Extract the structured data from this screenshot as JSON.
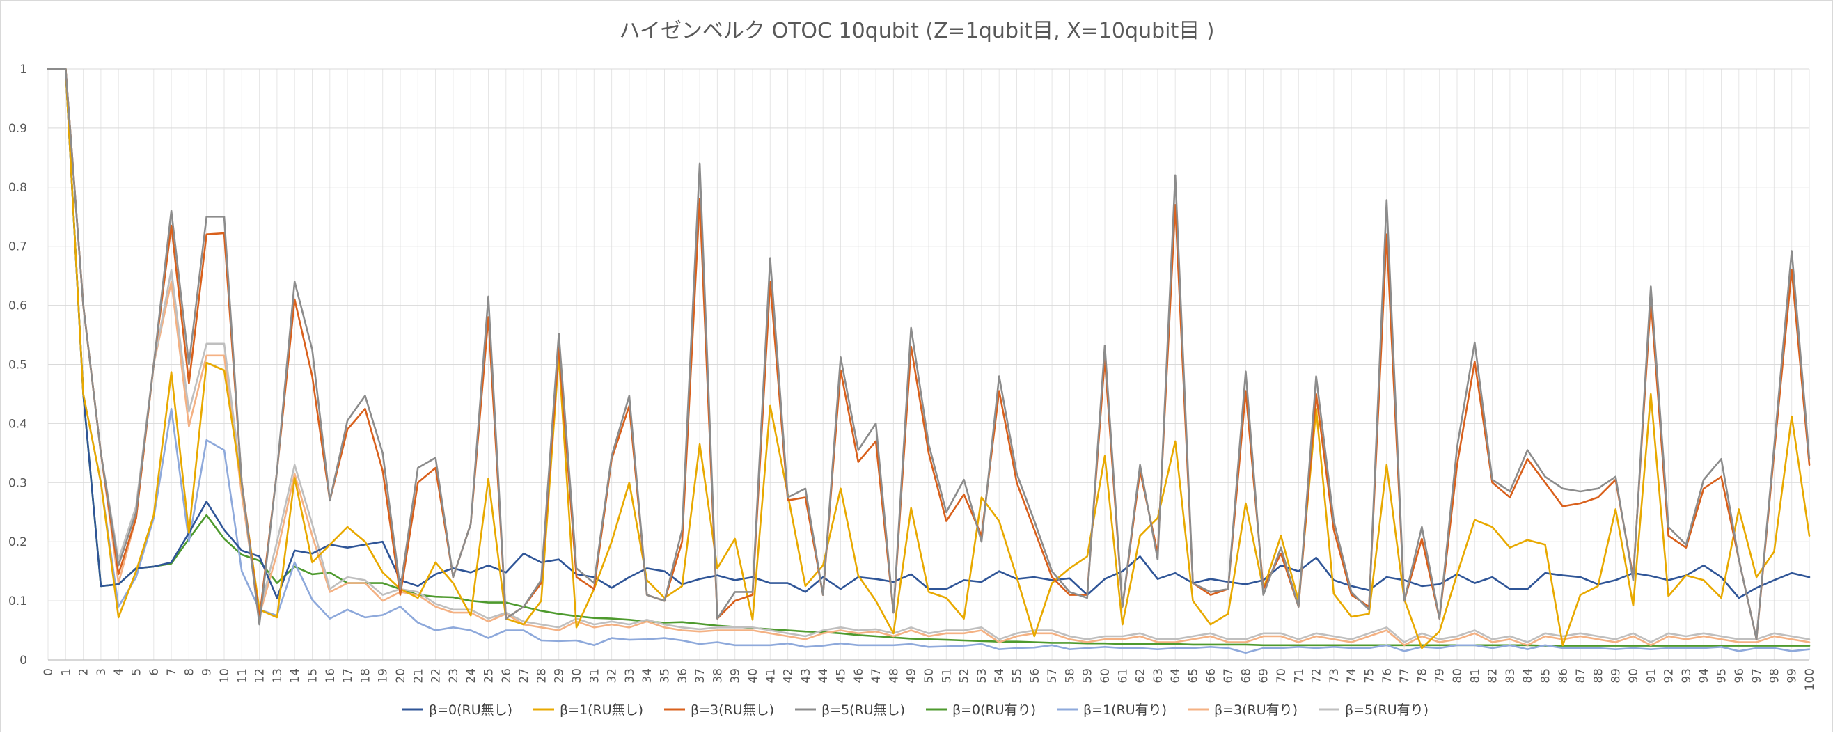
{
  "chart_data": {
    "type": "line",
    "title": "ハイゼンベルク OTOC 10qubit (Z=1qubit目, X=10qubit目 )",
    "xlabel": "",
    "ylabel": "",
    "ylim": [
      0,
      1
    ],
    "yticks": [
      "0",
      "0.1",
      "0.2",
      "0.3",
      "0.4",
      "0.5",
      "0.6",
      "0.7",
      "0.8",
      "0.9",
      "1"
    ],
    "x_range": [
      0,
      100
    ],
    "grid": true,
    "legend_position": "bottom",
    "series": [
      {
        "name": "β=0(RU無し)",
        "color": "#2f5597",
        "values": [
          1,
          1,
          0.45,
          0.125,
          0.128,
          0.155,
          0.158,
          0.165,
          0.215,
          0.268,
          0.22,
          0.185,
          0.175,
          0.105,
          0.185,
          0.18,
          0.195,
          0.19,
          0.195,
          0.2,
          0.135,
          0.125,
          0.145,
          0.155,
          0.148,
          0.16,
          0.148,
          0.18,
          0.165,
          0.17,
          0.145,
          0.14,
          0.122,
          0.14,
          0.155,
          0.15,
          0.128,
          0.137,
          0.143,
          0.135,
          0.14,
          0.13,
          0.13,
          0.115,
          0.14,
          0.12,
          0.14,
          0.137,
          0.132,
          0.145,
          0.12,
          0.12,
          0.135,
          0.132,
          0.15,
          0.137,
          0.14,
          0.135,
          0.138,
          0.11,
          0.137,
          0.15,
          0.175,
          0.137,
          0.147,
          0.13,
          0.137,
          0.132,
          0.128,
          0.135,
          0.16,
          0.15,
          0.173,
          0.135,
          0.125,
          0.118,
          0.14,
          0.135,
          0.125,
          0.128,
          0.145,
          0.13,
          0.14,
          0.12,
          0.12,
          0.147,
          0.143,
          0.14,
          0.128,
          0.135,
          0.147,
          0.142,
          0.135,
          0.143,
          0.16,
          0.14,
          0.105,
          0.122,
          0.135,
          0.147,
          0.14
        ]
      },
      {
        "name": "β=1(RU無し)",
        "color": "#e8a900",
        "values": [
          1,
          1,
          0.45,
          0.3,
          0.072,
          0.15,
          0.245,
          0.487,
          0.215,
          0.503,
          0.49,
          0.295,
          0.085,
          0.072,
          0.308,
          0.165,
          0.195,
          0.225,
          0.2,
          0.148,
          0.12,
          0.105,
          0.165,
          0.13,
          0.075,
          0.307,
          0.07,
          0.06,
          0.1,
          0.515,
          0.055,
          0.12,
          0.2,
          0.3,
          0.135,
          0.105,
          0.125,
          0.365,
          0.155,
          0.205,
          0.068,
          0.43,
          0.28,
          0.125,
          0.16,
          0.29,
          0.143,
          0.1,
          0.045,
          0.257,
          0.115,
          0.105,
          0.07,
          0.275,
          0.235,
          0.14,
          0.04,
          0.13,
          0.155,
          0.175,
          0.345,
          0.06,
          0.21,
          0.24,
          0.37,
          0.1,
          0.06,
          0.078,
          0.265,
          0.12,
          0.21,
          0.1,
          0.425,
          0.112,
          0.073,
          0.078,
          0.33,
          0.103,
          0.02,
          0.048,
          0.145,
          0.237,
          0.225,
          0.19,
          0.203,
          0.195,
          0.025,
          0.11,
          0.125,
          0.255,
          0.092,
          0.45,
          0.108,
          0.143,
          0.135,
          0.105,
          0.255,
          0.14,
          0.183,
          0.412,
          0.21
        ]
      },
      {
        "name": "β=3(RU無し)",
        "color": "#d9601c",
        "values": [
          1,
          1,
          0.6,
          0.35,
          0.145,
          0.24,
          0.5,
          0.735,
          0.468,
          0.72,
          0.722,
          0.3,
          0.07,
          0.32,
          0.61,
          0.48,
          0.27,
          0.39,
          0.425,
          0.32,
          0.11,
          0.3,
          0.325,
          0.14,
          0.23,
          0.58,
          0.07,
          0.09,
          0.13,
          0.53,
          0.14,
          0.12,
          0.34,
          0.43,
          0.11,
          0.1,
          0.2,
          0.78,
          0.07,
          0.1,
          0.11,
          0.64,
          0.27,
          0.275,
          0.11,
          0.49,
          0.335,
          0.37,
          0.08,
          0.53,
          0.35,
          0.235,
          0.28,
          0.21,
          0.455,
          0.3,
          0.22,
          0.14,
          0.11,
          0.11,
          0.51,
          0.09,
          0.32,
          0.18,
          0.77,
          0.13,
          0.11,
          0.12,
          0.455,
          0.12,
          0.18,
          0.09,
          0.45,
          0.22,
          0.11,
          0.09,
          0.72,
          0.1,
          0.205,
          0.07,
          0.33,
          0.505,
          0.3,
          0.275,
          0.34,
          0.3,
          0.26,
          0.265,
          0.275,
          0.305,
          0.14,
          0.61,
          0.21,
          0.19,
          0.29,
          0.31,
          0.17,
          0.035,
          0.35,
          0.66,
          0.33
        ]
      },
      {
        "name": "β=5(RU無し)",
        "color": "#8c8c8c",
        "values": [
          1,
          1,
          0.6,
          0.35,
          0.16,
          0.25,
          0.5,
          0.76,
          0.5,
          0.75,
          0.75,
          0.3,
          0.06,
          0.32,
          0.64,
          0.525,
          0.27,
          0.405,
          0.447,
          0.35,
          0.12,
          0.325,
          0.342,
          0.14,
          0.23,
          0.615,
          0.07,
          0.09,
          0.135,
          0.552,
          0.155,
          0.13,
          0.345,
          0.447,
          0.11,
          0.1,
          0.22,
          0.84,
          0.07,
          0.115,
          0.115,
          0.68,
          0.275,
          0.29,
          0.11,
          0.512,
          0.355,
          0.4,
          0.08,
          0.562,
          0.365,
          0.25,
          0.305,
          0.2,
          0.48,
          0.315,
          0.235,
          0.15,
          0.115,
          0.105,
          0.532,
          0.09,
          0.33,
          0.17,
          0.82,
          0.13,
          0.115,
          0.12,
          0.488,
          0.11,
          0.19,
          0.09,
          0.48,
          0.235,
          0.115,
          0.085,
          0.778,
          0.1,
          0.225,
          0.07,
          0.36,
          0.537,
          0.305,
          0.285,
          0.355,
          0.31,
          0.29,
          0.285,
          0.29,
          0.31,
          0.135,
          0.632,
          0.225,
          0.195,
          0.305,
          0.34,
          0.17,
          0.035,
          0.36,
          0.692,
          0.34
        ]
      },
      {
        "name": "β=0(RU有り)",
        "color": "#4e9a2e",
        "values": [
          1,
          1,
          0.45,
          0.125,
          0.128,
          0.155,
          0.158,
          0.163,
          0.205,
          0.245,
          0.205,
          0.178,
          0.168,
          0.13,
          0.158,
          0.145,
          0.148,
          0.13,
          0.13,
          0.13,
          0.12,
          0.11,
          0.107,
          0.106,
          0.1,
          0.097,
          0.097,
          0.09,
          0.083,
          0.078,
          0.074,
          0.071,
          0.07,
          0.068,
          0.065,
          0.063,
          0.064,
          0.061,
          0.058,
          0.056,
          0.054,
          0.052,
          0.05,
          0.048,
          0.047,
          0.045,
          0.042,
          0.04,
          0.038,
          0.036,
          0.035,
          0.034,
          0.033,
          0.032,
          0.031,
          0.031,
          0.03,
          0.029,
          0.029,
          0.028,
          0.028,
          0.027,
          0.027,
          0.027,
          0.027,
          0.026,
          0.026,
          0.026,
          0.026,
          0.025,
          0.025,
          0.025,
          0.025,
          0.025,
          0.025,
          0.025,
          0.025,
          0.025,
          0.025,
          0.025,
          0.025,
          0.025,
          0.025,
          0.025,
          0.025,
          0.024,
          0.024,
          0.024,
          0.024,
          0.024,
          0.024,
          0.024,
          0.024,
          0.024,
          0.024,
          0.024,
          0.024,
          0.024,
          0.024,
          0.024,
          0.024
        ]
      },
      {
        "name": "β=1(RU有り)",
        "color": "#8ea9db",
        "values": [
          1,
          1,
          0.45,
          0.3,
          0.09,
          0.14,
          0.24,
          0.425,
          0.2,
          0.372,
          0.355,
          0.15,
          0.085,
          0.075,
          0.165,
          0.102,
          0.07,
          0.085,
          0.072,
          0.076,
          0.09,
          0.063,
          0.05,
          0.055,
          0.05,
          0.037,
          0.05,
          0.05,
          0.033,
          0.032,
          0.033,
          0.025,
          0.037,
          0.034,
          0.035,
          0.037,
          0.033,
          0.027,
          0.03,
          0.025,
          0.025,
          0.025,
          0.028,
          0.022,
          0.024,
          0.028,
          0.025,
          0.025,
          0.025,
          0.027,
          0.022,
          0.023,
          0.024,
          0.027,
          0.018,
          0.02,
          0.021,
          0.025,
          0.018,
          0.02,
          0.022,
          0.02,
          0.02,
          0.018,
          0.02,
          0.02,
          0.022,
          0.02,
          0.012,
          0.02,
          0.02,
          0.022,
          0.02,
          0.022,
          0.02,
          0.02,
          0.025,
          0.015,
          0.022,
          0.02,
          0.025,
          0.025,
          0.02,
          0.025,
          0.018,
          0.025,
          0.02,
          0.02,
          0.02,
          0.018,
          0.02,
          0.018,
          0.02,
          0.02,
          0.02,
          0.022,
          0.015,
          0.02,
          0.02,
          0.015,
          0.018
        ]
      },
      {
        "name": "β=3(RU有り)",
        "color": "#f4b183",
        "values": [
          1,
          1,
          0.6,
          0.35,
          0.13,
          0.24,
          0.5,
          0.64,
          0.395,
          0.515,
          0.515,
          0.28,
          0.075,
          0.18,
          0.315,
          0.21,
          0.115,
          0.13,
          0.13,
          0.1,
          0.115,
          0.11,
          0.09,
          0.08,
          0.08,
          0.065,
          0.078,
          0.06,
          0.055,
          0.05,
          0.065,
          0.055,
          0.06,
          0.055,
          0.065,
          0.055,
          0.05,
          0.048,
          0.05,
          0.05,
          0.05,
          0.045,
          0.04,
          0.035,
          0.045,
          0.05,
          0.045,
          0.048,
          0.04,
          0.05,
          0.04,
          0.045,
          0.045,
          0.05,
          0.03,
          0.04,
          0.045,
          0.045,
          0.035,
          0.03,
          0.035,
          0.035,
          0.04,
          0.03,
          0.03,
          0.035,
          0.04,
          0.03,
          0.03,
          0.04,
          0.04,
          0.03,
          0.04,
          0.035,
          0.03,
          0.04,
          0.05,
          0.025,
          0.04,
          0.03,
          0.035,
          0.045,
          0.03,
          0.035,
          0.025,
          0.04,
          0.035,
          0.04,
          0.035,
          0.03,
          0.04,
          0.025,
          0.04,
          0.035,
          0.04,
          0.035,
          0.03,
          0.03,
          0.04,
          0.035,
          0.03
        ]
      },
      {
        "name": "β=5(RU有り)",
        "color": "#bfbfbf",
        "values": [
          1,
          1,
          0.6,
          0.35,
          0.17,
          0.26,
          0.5,
          0.66,
          0.42,
          0.535,
          0.535,
          0.3,
          0.08,
          0.2,
          0.33,
          0.23,
          0.12,
          0.14,
          0.135,
          0.11,
          0.12,
          0.115,
          0.095,
          0.085,
          0.085,
          0.07,
          0.08,
          0.065,
          0.06,
          0.055,
          0.07,
          0.06,
          0.065,
          0.06,
          0.068,
          0.06,
          0.055,
          0.052,
          0.055,
          0.055,
          0.055,
          0.05,
          0.045,
          0.04,
          0.05,
          0.055,
          0.05,
          0.052,
          0.045,
          0.055,
          0.045,
          0.05,
          0.05,
          0.055,
          0.035,
          0.045,
          0.05,
          0.05,
          0.04,
          0.035,
          0.04,
          0.04,
          0.045,
          0.035,
          0.035,
          0.04,
          0.045,
          0.035,
          0.035,
          0.045,
          0.045,
          0.035,
          0.045,
          0.04,
          0.035,
          0.045,
          0.055,
          0.03,
          0.045,
          0.035,
          0.04,
          0.05,
          0.035,
          0.04,
          0.03,
          0.045,
          0.04,
          0.045,
          0.04,
          0.035,
          0.045,
          0.03,
          0.045,
          0.04,
          0.045,
          0.04,
          0.035,
          0.035,
          0.045,
          0.04,
          0.035
        ]
      }
    ]
  }
}
